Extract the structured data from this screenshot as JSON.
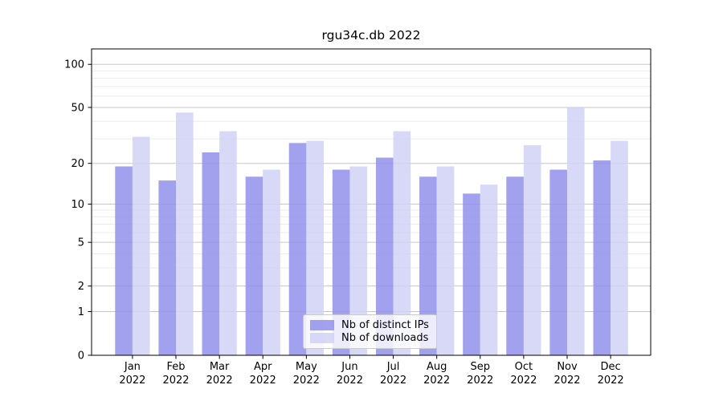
{
  "chart_data": {
    "type": "bar",
    "title": "rgu34c.db 2022",
    "year": "2022",
    "months": [
      "Jan",
      "Feb",
      "Mar",
      "Apr",
      "May",
      "Jun",
      "Jul",
      "Aug",
      "Sep",
      "Oct",
      "Nov",
      "Dec"
    ],
    "categories": [
      "Jan 2022",
      "Feb 2022",
      "Mar 2022",
      "Apr 2022",
      "May 2022",
      "Jun 2022",
      "Jul 2022",
      "Aug 2022",
      "Sep 2022",
      "Oct 2022",
      "Nov 2022",
      "Dec 2022"
    ],
    "series": [
      {
        "name": "Nb of distinct IPs",
        "color": "#9090ea",
        "values": [
          19,
          15,
          24,
          16,
          28,
          18,
          22,
          16,
          12,
          16,
          18,
          21
        ]
      },
      {
        "name": "Nb of downloads",
        "color": "#d1d1f6",
        "values": [
          31,
          46,
          34,
          18,
          29,
          19,
          34,
          19,
          14,
          27,
          50,
          29
        ]
      }
    ],
    "yscale": "log1p",
    "ylim": [
      0,
      128
    ],
    "y_major_ticks": [
      0,
      1,
      2,
      5,
      10,
      20,
      50,
      100
    ],
    "y_minor_gridlines": [
      3,
      4,
      6,
      7,
      8,
      9,
      30,
      40,
      60,
      70,
      80,
      90
    ],
    "grid": true,
    "legend_position": "lower center",
    "colors": {
      "major_grid": "#c6c6c6",
      "minor_grid": "#ebebeb",
      "axis": "#000000",
      "background": "#ffffff"
    }
  }
}
